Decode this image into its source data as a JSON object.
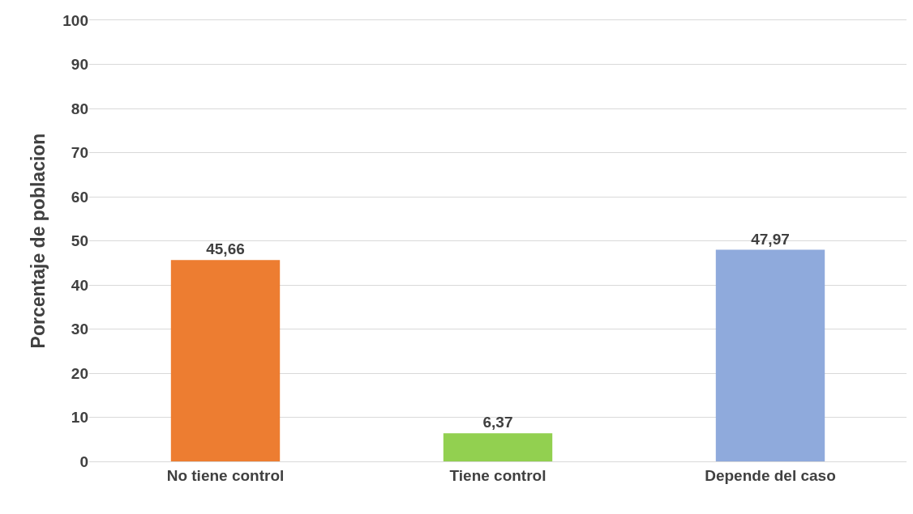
{
  "chart_data": {
    "type": "bar",
    "ylabel": "Porcentaje de poblacion",
    "categories": [
      "No tiene control",
      "Tiene control",
      "Depende del caso"
    ],
    "values": [
      45.66,
      6.37,
      47.97
    ],
    "colors": [
      "#ed7d31",
      "#92d050",
      "#8faadc"
    ],
    "value_labels": [
      "45,66",
      "6,37",
      "47,97"
    ],
    "ylim": [
      0,
      100
    ],
    "yticks": [
      0,
      10,
      20,
      30,
      40,
      50,
      60,
      70,
      80,
      90,
      100
    ],
    "grid": "y"
  }
}
